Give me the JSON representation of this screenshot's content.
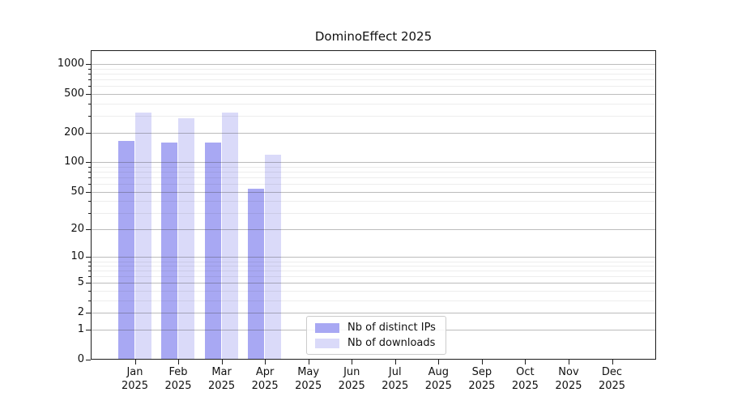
{
  "chart_data": {
    "type": "bar",
    "title": "DominoEffect 2025",
    "categories": [
      "Jan",
      "Feb",
      "Mar",
      "Apr",
      "May",
      "Jun",
      "Jul",
      "Aug",
      "Sep",
      "Oct",
      "Nov",
      "Dec"
    ],
    "x_year": "2025",
    "series": [
      {
        "name": "Nb of distinct IPs",
        "color": "#a8a8f3",
        "values": [
          166,
          159,
          160,
          54,
          0,
          0,
          0,
          0,
          0,
          0,
          0,
          0
        ]
      },
      {
        "name": "Nb of downloads",
        "color": "#dadaf9",
        "values": [
          320,
          283,
          320,
          119,
          0,
          0,
          0,
          0,
          0,
          0,
          0,
          0
        ]
      }
    ],
    "y_axis": {
      "scale": "log1p",
      "ticks": [
        1000,
        500,
        200,
        100,
        50,
        20,
        10,
        5,
        2,
        1,
        0
      ],
      "minor_ticks": [
        900,
        800,
        700,
        600,
        400,
        300,
        90,
        80,
        70,
        60,
        40,
        30,
        9,
        8,
        7,
        6,
        4,
        3
      ],
      "max": 1380
    },
    "xlabel": "",
    "ylabel": "",
    "grid": true,
    "legend": {
      "position": "lower-center",
      "frame": true
    },
    "background": "#ffffff",
    "axis_color": "#1c1c1c"
  }
}
